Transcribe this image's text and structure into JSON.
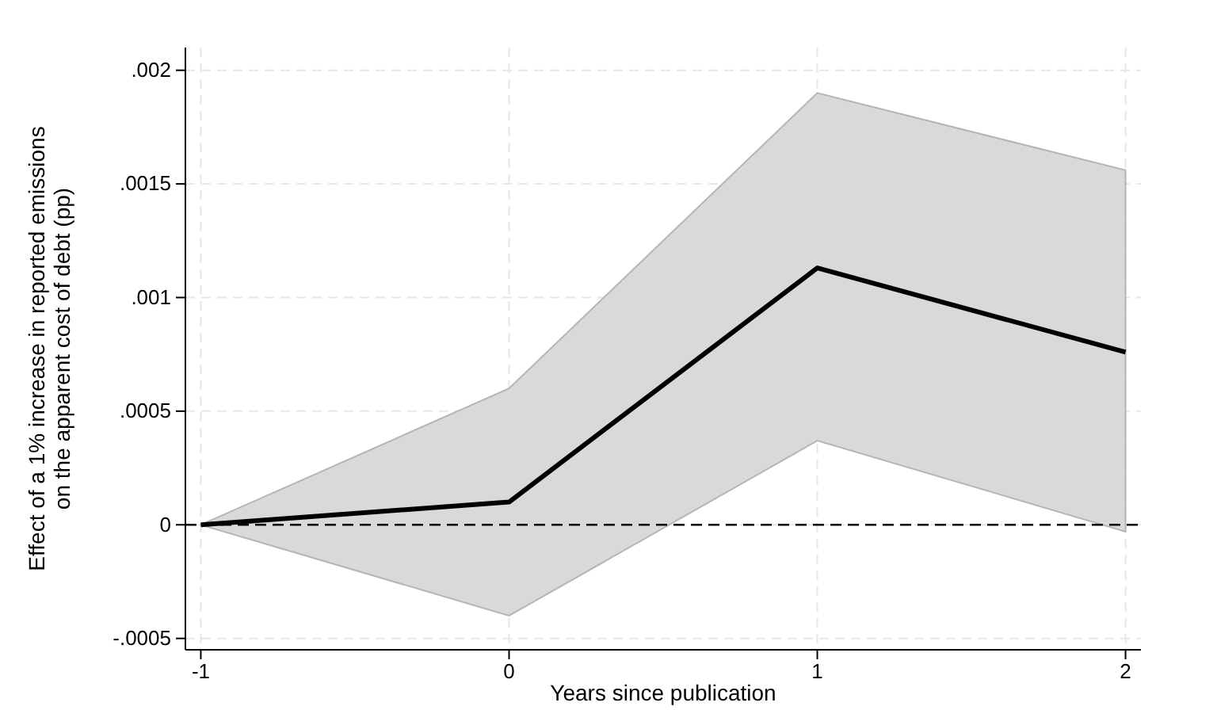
{
  "chart_data": {
    "type": "line",
    "xlabel": "Years since publication",
    "ylabel": "Effect of a 1% increase in reported emissions\non the apparent cost of debt (pp)",
    "x": [
      -1,
      0,
      1,
      2
    ],
    "series": [
      {
        "color": "#000000",
        "values": [
          0,
          0.0001,
          0.00113,
          0.00076
        ],
        "lower": [
          0,
          -0.0004,
          0.00037,
          -3e-05
        ],
        "upper": [
          0,
          0.0006,
          0.0019,
          0.00156
        ]
      }
    ],
    "xlim": [
      -1.05,
      2.05
    ],
    "xticks": [
      -1,
      0,
      1,
      2
    ],
    "ylim": [
      -0.00055,
      0.0021
    ],
    "yticks": [
      {
        "value": -0.0005,
        "label": "-.0005"
      },
      {
        "value": 0,
        "label": "0"
      },
      {
        "value": 0.0005,
        "label": ".0005"
      },
      {
        "value": 0.001,
        "label": ".001"
      },
      {
        "value": 0.0015,
        "label": ".0015"
      },
      {
        "value": 0.002,
        "label": ".002"
      }
    ],
    "grid": true,
    "marker": "none",
    "line_style": "solid",
    "ref_lines": [
      {
        "axis": "y",
        "value": 0,
        "line_style": "dashed",
        "color": "#000000"
      }
    ]
  }
}
